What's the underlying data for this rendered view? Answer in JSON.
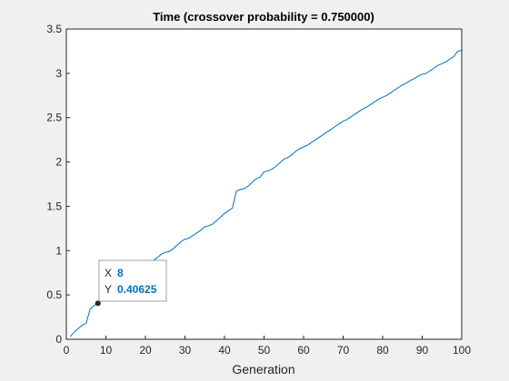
{
  "chart_data": {
    "type": "line",
    "title": "Time (crossover probability = 0.750000)",
    "xlabel": "Generation",
    "ylabel": "",
    "xlim": [
      0,
      100
    ],
    "ylim": [
      0,
      3.5
    ],
    "xticks": [
      0,
      10,
      20,
      30,
      40,
      50,
      60,
      70,
      80,
      90,
      100
    ],
    "yticks": [
      0,
      0.5,
      1,
      1.5,
      2,
      2.5,
      3,
      3.5
    ],
    "grid": false,
    "line_color": "#0072bd",
    "series": [
      {
        "x": [
          1,
          2,
          3,
          4,
          5,
          6,
          7,
          8,
          9,
          10,
          11,
          12,
          13,
          14,
          15,
          16,
          17,
          18,
          19,
          20,
          21,
          22,
          23,
          24,
          25,
          26,
          27,
          28,
          29,
          30,
          31,
          32,
          33,
          34,
          35,
          36,
          37,
          38,
          39,
          40,
          41,
          42,
          43,
          44,
          45,
          46,
          47,
          48,
          49,
          50,
          51,
          52,
          53,
          54,
          55,
          56,
          57,
          58,
          59,
          60,
          61,
          62,
          63,
          64,
          65,
          66,
          67,
          68,
          69,
          70,
          71,
          72,
          73,
          74,
          75,
          76,
          77,
          78,
          79,
          80,
          81,
          82,
          83,
          84,
          85,
          86,
          87,
          88,
          89,
          90,
          91,
          92,
          93,
          94,
          95,
          96,
          97,
          98,
          99,
          100
        ],
        "values": [
          0.03,
          0.08,
          0.12,
          0.16,
          0.18,
          0.34,
          0.38,
          0.40625,
          0.45,
          0.49,
          0.52,
          0.56,
          0.6,
          0.63,
          0.68,
          0.72,
          0.76,
          0.8,
          0.84,
          0.86,
          0.87,
          0.89,
          0.92,
          0.96,
          0.98,
          0.99,
          1.02,
          1.06,
          1.1,
          1.13,
          1.14,
          1.17,
          1.2,
          1.23,
          1.27,
          1.28,
          1.3,
          1.34,
          1.38,
          1.42,
          1.45,
          1.48,
          1.67,
          1.69,
          1.7,
          1.73,
          1.77,
          1.81,
          1.83,
          1.89,
          1.9,
          1.92,
          1.95,
          1.99,
          2.03,
          2.05,
          2.08,
          2.12,
          2.15,
          2.17,
          2.19,
          2.22,
          2.25,
          2.28,
          2.31,
          2.34,
          2.37,
          2.4,
          2.43,
          2.46,
          2.48,
          2.51,
          2.54,
          2.57,
          2.6,
          2.62,
          2.65,
          2.68,
          2.71,
          2.73,
          2.75,
          2.78,
          2.81,
          2.84,
          2.87,
          2.89,
          2.92,
          2.94,
          2.97,
          2.99,
          3.0,
          3.03,
          3.06,
          3.09,
          3.11,
          3.13,
          3.16,
          3.19,
          3.25,
          3.26
        ]
      }
    ],
    "datatip": {
      "x_key": "X",
      "x_value": "8",
      "y_key": "Y",
      "y_value": "0.40625",
      "x": 8,
      "y": 0.40625
    }
  }
}
